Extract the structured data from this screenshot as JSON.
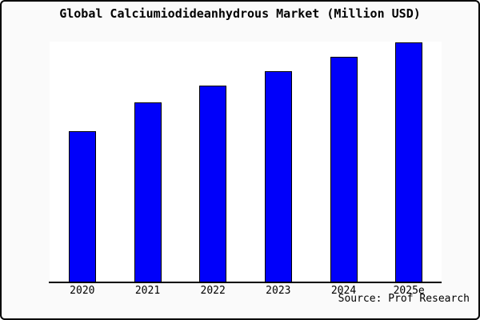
{
  "chart": {
    "title": "Global Calciumiodideanhydrous Market (Million USD)",
    "source": "Source: Prof Research"
  },
  "chart_data": {
    "type": "bar",
    "title": "Global Calciumiodideanhydrous Market (Million USD)",
    "categories": [
      "2020",
      "2021",
      "2022",
      "2023",
      "2024",
      "2025e"
    ],
    "values": [
      63,
      75,
      82,
      88,
      94,
      100
    ],
    "value_units": "relative index, tallest bar (2025e) = 100; y-axis has no tick labels or gridlines",
    "xlabel": "",
    "ylabel": "",
    "ylim": [
      0,
      100
    ],
    "grid": false,
    "legend": false,
    "bar_color": "#0000fa",
    "bar_border_color": "#000000",
    "annotations": [
      "Source: Prof Research"
    ]
  },
  "colors": {
    "background": "#fafafa",
    "plot_background": "#ffffff",
    "bar_fill": "#0000fa",
    "bar_border": "#000000",
    "axis": "#000000",
    "text": "#000000",
    "frame_border": "#000000"
  }
}
